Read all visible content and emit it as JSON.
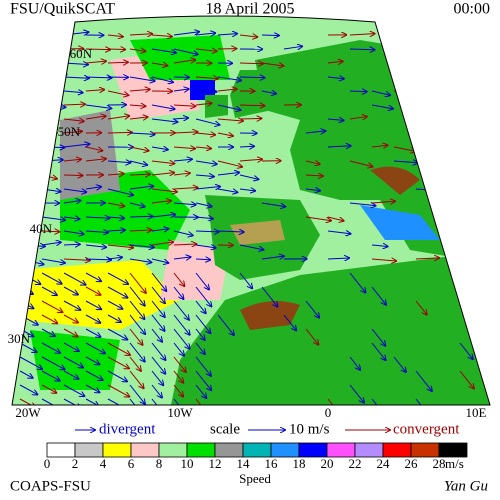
{
  "header": {
    "left": "FSU/QuikSCAT",
    "center": "18 April 2005",
    "right": "00:00"
  },
  "map": {
    "lat_labels": [
      "60N",
      "50N",
      "40N",
      "30N"
    ],
    "lon_labels": [
      "20W",
      "10W",
      "0",
      "10E"
    ]
  },
  "legend": {
    "divergent": "divergent",
    "scale": "scale",
    "scale_value": "10 m/s",
    "convergent": "convergent"
  },
  "colorbar": {
    "labels": [
      "0",
      "2",
      "4",
      "6",
      "8",
      "10",
      "12",
      "14",
      "16",
      "18",
      "20",
      "22",
      "24",
      "26",
      "28"
    ],
    "unit": "m/s",
    "title": "Speed",
    "colors": [
      "#ffffff",
      "#c8c8c8",
      "#ffff00",
      "#ffc8c8",
      "#a0f0a0",
      "#00e000",
      "#969696",
      "#00b4b4",
      "#1e90ff",
      "#0000ff",
      "#ff50ff",
      "#b48cff",
      "#ff0000",
      "#c83200",
      "#000000"
    ]
  },
  "footer": {
    "left": "COAPS-FSU",
    "right": "Yan Gu"
  }
}
